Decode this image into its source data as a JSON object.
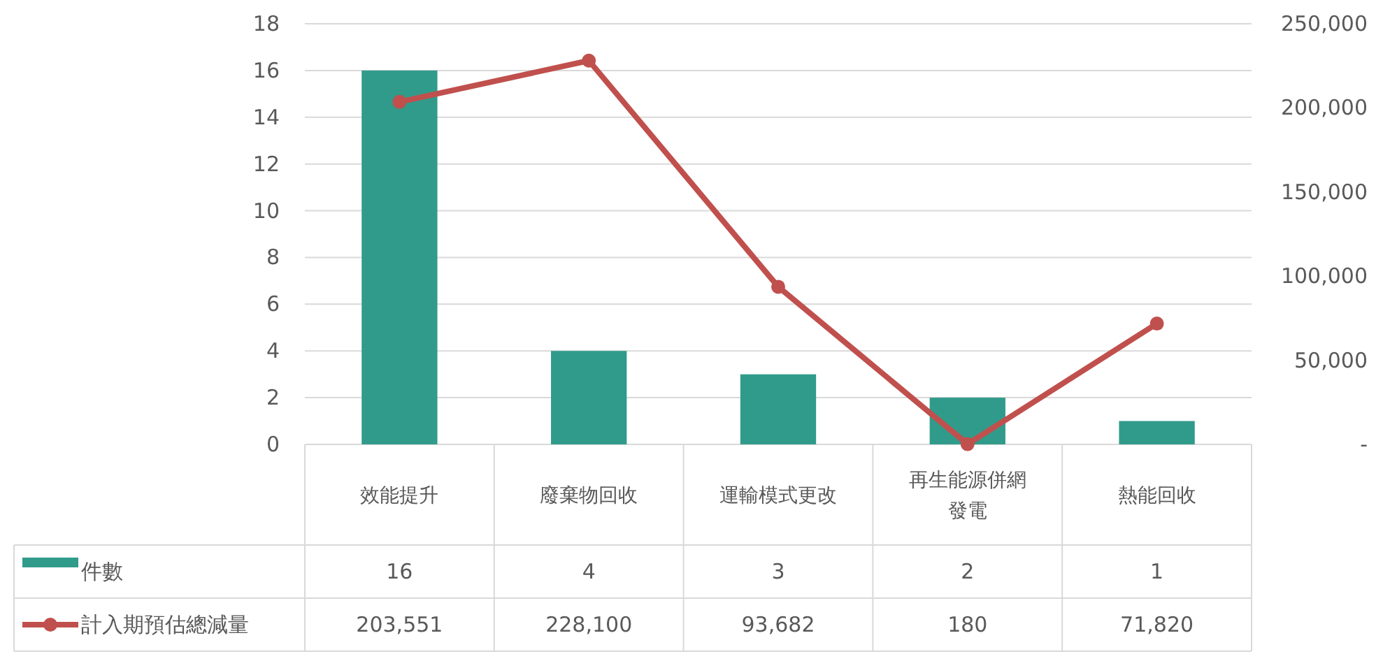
{
  "chart_data": {
    "type": "bar",
    "categories": [
      "效能提升",
      "廢棄物回收",
      "運輸模式更改",
      "再生能源併網發電",
      "熱能回收"
    ],
    "series": [
      {
        "name": "件數",
        "color": "#319b8b",
        "values": [
          16,
          4,
          3,
          2,
          1
        ],
        "value_labels": [
          "16",
          "4",
          "3",
          "2",
          "1"
        ]
      },
      {
        "name": "計入期預估總減量",
        "type": "line",
        "axis": "y2",
        "color": "#c0504d",
        "marker": "circle",
        "values": [
          203551,
          228100,
          93682,
          180,
          71820
        ],
        "value_labels": [
          "203,551",
          "228,100",
          "93,682",
          "180",
          "71,820"
        ]
      }
    ],
    "ylim": [
      0,
      18
    ],
    "yticks": [
      0,
      2,
      4,
      6,
      8,
      10,
      12,
      14,
      16,
      18
    ],
    "y2lim": [
      0,
      250000
    ],
    "y2ticks": [
      {
        "value": 0,
        "label": "-"
      },
      {
        "value": 50000,
        "label": "50,000"
      },
      {
        "value": 100000,
        "label": "100,000"
      },
      {
        "value": 150000,
        "label": "150,000"
      },
      {
        "value": 200000,
        "label": "200,000"
      },
      {
        "value": 250000,
        "label": "250,000"
      }
    ],
    "grid": "y",
    "legend": "bottom left"
  }
}
